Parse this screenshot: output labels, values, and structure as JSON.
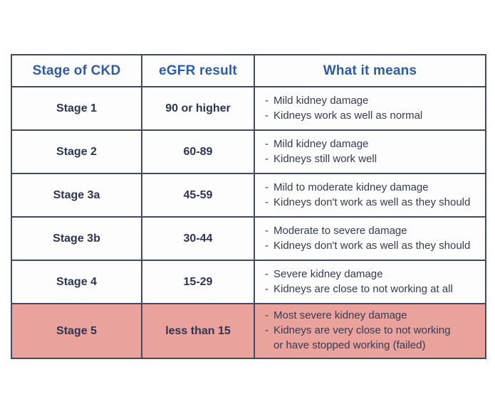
{
  "style": {
    "page_bg": "#ffffff",
    "border": "#3f4b64",
    "header_bg": "#e6e6e6",
    "header_text": "#2b5caa",
    "body_bg": "#fdfdfd",
    "stage_text": "#2c3552",
    "meaning_text": "#333c55",
    "highlight_bg": "#e9a29c"
  },
  "bullet": "-",
  "chart_data": {
    "type": "table",
    "title": "",
    "columns": [
      "Stage of CKD",
      "eGFR result",
      "What it means"
    ],
    "rows": [
      {
        "stage": "Stage 1",
        "egfr": "90 or higher",
        "meaning": [
          "Mild kidney damage",
          "Kidneys work as well as normal"
        ],
        "highlighted": false
      },
      {
        "stage": "Stage 2",
        "egfr": "60-89",
        "meaning": [
          "Mild kidney damage",
          "Kidneys still work well"
        ],
        "highlighted": false
      },
      {
        "stage": "Stage 3a",
        "egfr": "45-59",
        "meaning": [
          "Mild to moderate kidney damage",
          "Kidneys don't work as well as they should"
        ],
        "highlighted": false
      },
      {
        "stage": "Stage 3b",
        "egfr": "30-44",
        "meaning": [
          "Moderate to severe damage",
          "Kidneys don't work as well as they should"
        ],
        "highlighted": false
      },
      {
        "stage": "Stage 4",
        "egfr": "15-29",
        "meaning": [
          "Severe kidney damage",
          "Kidneys are close to not working at all"
        ],
        "highlighted": false
      },
      {
        "stage": "Stage 5",
        "egfr": "less than 15",
        "meaning": [
          "Most severe kidney damage",
          "Kidneys are very close to not working\nor have stopped working (failed)"
        ],
        "highlighted": true
      }
    ]
  }
}
